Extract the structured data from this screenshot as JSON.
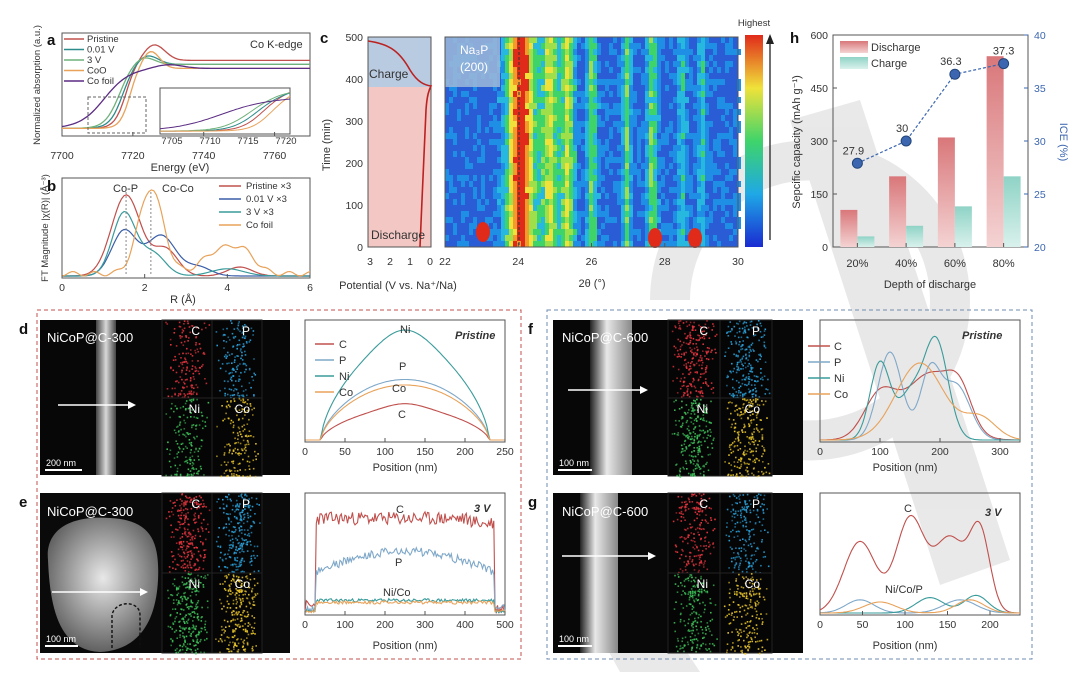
{
  "panels": {
    "a": {
      "letter": "a",
      "corner": "Co K-edge",
      "ylabel": "Normalized absorption (a.u.)",
      "xlabel": "Energy (eV)",
      "xticks": [
        "7700",
        "7720",
        "7740",
        "7760"
      ],
      "inset_ticks": [
        "7705",
        "7710",
        "7715",
        "7720"
      ],
      "legend": [
        "Pristine",
        "0.01 V",
        "3 V",
        "CoO",
        "Co foil"
      ],
      "colors": [
        "#c0504d",
        "#2e8b8b",
        "#6fb27a",
        "#e8a25a",
        "#5b2c83"
      ]
    },
    "b": {
      "letter": "b",
      "ylabel": "FT Magnitude |χ(R)| (Å⁻³)",
      "xlabel": "R (Å)",
      "xticks": [
        "0",
        "2",
        "4",
        "6"
      ],
      "annot": [
        "Co-P",
        "Co-Co"
      ],
      "legend": [
        "Pristine ×3",
        "0.01 V ×3",
        "3 V ×3",
        "Co foil"
      ],
      "colors": [
        "#c0504d",
        "#3a5ea8",
        "#3a9b9b",
        "#e8a25a"
      ]
    },
    "c": {
      "letter": "c",
      "ylabel": "Time (min)",
      "yticks": [
        "0",
        "100",
        "200",
        "300",
        "400",
        "500"
      ],
      "xlabel_left": "Potential (V vs. Na⁺/Na)",
      "xticks_left": [
        "3",
        "2",
        "1",
        "0"
      ],
      "xlabel_right": "2θ (°)",
      "xticks_right": [
        "22",
        "24",
        "26",
        "28",
        "30"
      ],
      "charge": "Charge",
      "discharge": "Discharge",
      "phase": "Na₃P",
      "phase_hkl": "(200)",
      "colorbar_top": "Highest"
    },
    "h": {
      "letter": "h",
      "ylabel_left": "Sepcific capacity (mAh g⁻¹)",
      "ylabel_right": "ICE (%)",
      "xlabel": "Depth of discharge",
      "yticks_left": [
        "0",
        "150",
        "300",
        "450",
        "600"
      ],
      "yticks_right": [
        "20",
        "25",
        "30",
        "35",
        "40"
      ],
      "legend": [
        "Discharge",
        "Charge"
      ],
      "chart_data": {
        "type": "bar",
        "categories": [
          "20%",
          "40%",
          "60%",
          "80%"
        ],
        "series": [
          {
            "name": "Discharge",
            "values": [
              105,
              200,
              310,
              540
            ]
          },
          {
            "name": "Charge",
            "values": [
              30,
              60,
              115,
              200
            ]
          }
        ],
        "ice": [
          27.9,
          30,
          36.3,
          37.3
        ],
        "ice_labels": [
          "27.9",
          "30",
          "36.3",
          "37.3"
        ],
        "ylim": [
          0,
          600
        ],
        "ylim_right": [
          20,
          40
        ],
        "colors": {
          "discharge": "#d9777a",
          "charge": "#8fd3c6",
          "ice": "#3c67b0"
        }
      }
    },
    "d": {
      "letter": "d",
      "sample": "NiCoP@C-300",
      "scale": "200 nm",
      "maps": [
        "C",
        "P",
        "Ni",
        "Co"
      ],
      "state": "Pristine",
      "xlabel": "Position (nm)",
      "xticks": [
        "0",
        "50",
        "100",
        "150",
        "200",
        "250"
      ],
      "legend": [
        "C",
        "P",
        "Ni",
        "Co"
      ],
      "curve_labels": [
        "Ni",
        "P",
        "Co",
        "C"
      ]
    },
    "e": {
      "letter": "e",
      "sample": "NiCoP@C-300",
      "scale": "100 nm",
      "maps": [
        "C",
        "P",
        "Ni",
        "Co"
      ],
      "state": "3 V",
      "xlabel": "Position (nm)",
      "xticks": [
        "0",
        "100",
        "200",
        "300",
        "400",
        "500"
      ],
      "curve_labels": [
        "C",
        "P",
        "Ni/Co"
      ]
    },
    "f": {
      "letter": "f",
      "sample": "NiCoP@C-600",
      "scale": "100 nm",
      "maps": [
        "C",
        "P",
        "Ni",
        "Co"
      ],
      "state": "Pristine",
      "xlabel": "Position (nm)",
      "xticks": [
        "0",
        "100",
        "200",
        "300"
      ],
      "legend": [
        "C",
        "P",
        "Ni",
        "Co"
      ]
    },
    "g": {
      "letter": "g",
      "sample": "NiCoP@C-600",
      "scale": "100 nm",
      "maps": [
        "C",
        "P",
        "Ni",
        "Co"
      ],
      "state": "3 V",
      "xlabel": "Position (nm)",
      "xticks": [
        "0",
        "50",
        "100",
        "150",
        "200"
      ],
      "curve_labels": [
        "C",
        "Ni/Co/P"
      ]
    }
  },
  "element_colors": {
    "C": "#c0504d",
    "P": "#7fa8c9",
    "Ni": "#3a9b9b",
    "Co": "#e8a25a"
  }
}
